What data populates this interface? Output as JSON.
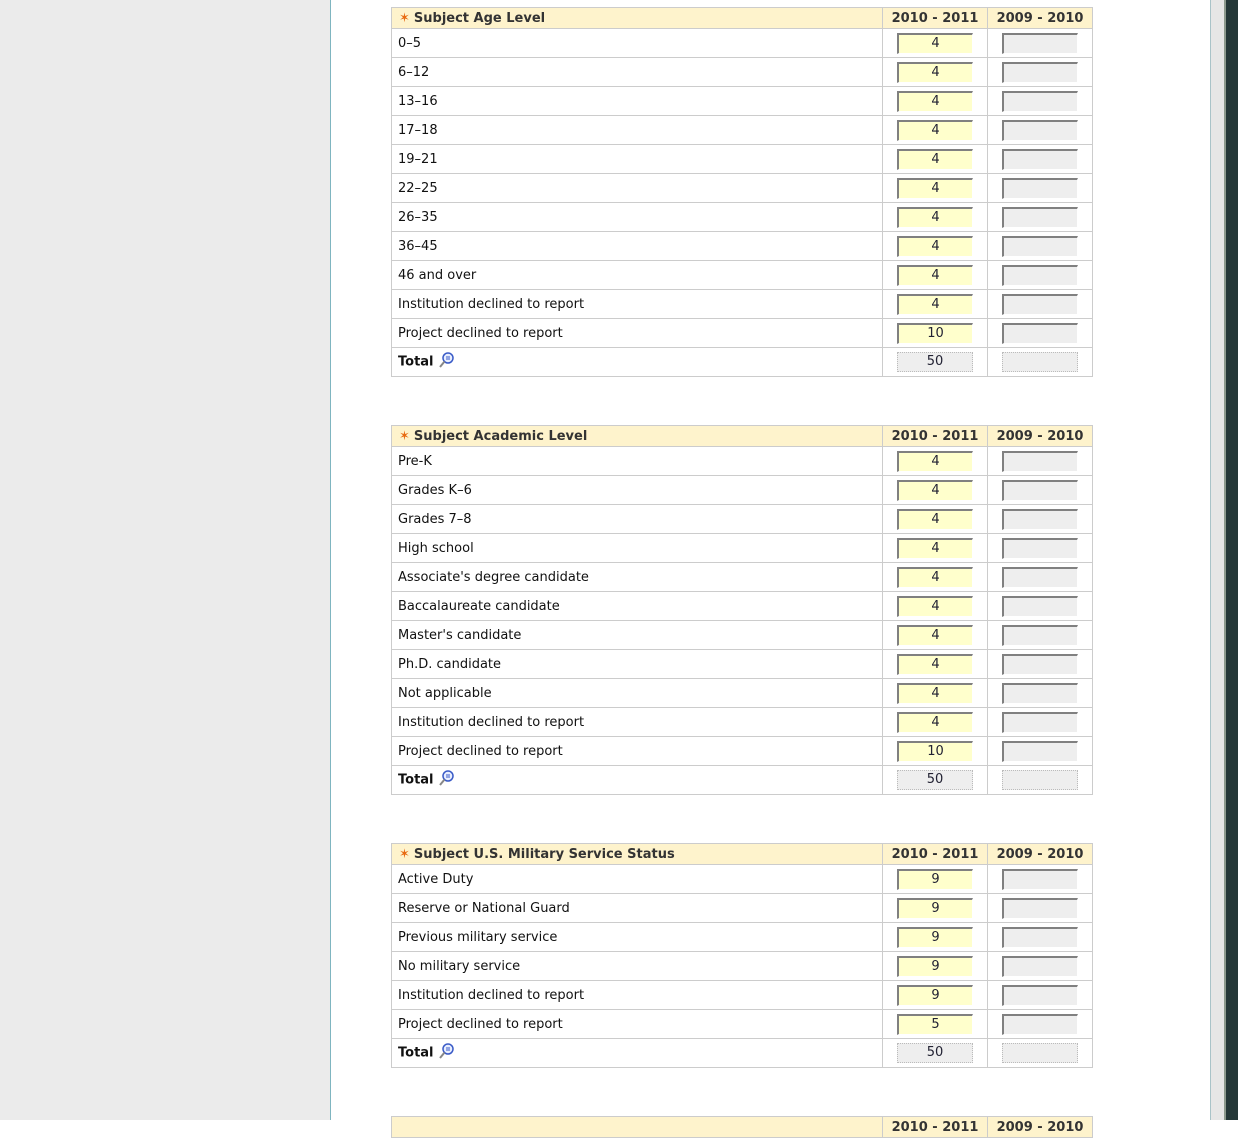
{
  "columns": [
    "2010 - 2011",
    "2009 - 2010"
  ],
  "total_label": "Total",
  "sections": [
    {
      "title": "Subject Age Level",
      "rows": [
        {
          "label": "0–5",
          "v1": "4",
          "v2": ""
        },
        {
          "label": "6–12",
          "v1": "4",
          "v2": ""
        },
        {
          "label": "13–16",
          "v1": "4",
          "v2": ""
        },
        {
          "label": "17–18",
          "v1": "4",
          "v2": ""
        },
        {
          "label": "19–21",
          "v1": "4",
          "v2": ""
        },
        {
          "label": "22–25",
          "v1": "4",
          "v2": ""
        },
        {
          "label": "26–35",
          "v1": "4",
          "v2": ""
        },
        {
          "label": "36–45",
          "v1": "4",
          "v2": ""
        },
        {
          "label": "46 and over",
          "v1": "4",
          "v2": ""
        },
        {
          "label": "Institution declined to report",
          "v1": "4",
          "v2": ""
        },
        {
          "label": "Project declined to report",
          "v1": "10",
          "v2": ""
        }
      ],
      "total1": "50",
      "total2": ""
    },
    {
      "title": "Subject Academic Level",
      "rows": [
        {
          "label": "Pre-K",
          "v1": "4",
          "v2": ""
        },
        {
          "label": "Grades K–6",
          "v1": "4",
          "v2": ""
        },
        {
          "label": "Grades 7–8",
          "v1": "4",
          "v2": ""
        },
        {
          "label": "High school",
          "v1": "4",
          "v2": ""
        },
        {
          "label": "Associate's degree candidate",
          "v1": "4",
          "v2": ""
        },
        {
          "label": "Baccalaureate candidate",
          "v1": "4",
          "v2": ""
        },
        {
          "label": "Master's candidate",
          "v1": "4",
          "v2": ""
        },
        {
          "label": "Ph.D. candidate",
          "v1": "4",
          "v2": ""
        },
        {
          "label": "Not applicable",
          "v1": "4",
          "v2": ""
        },
        {
          "label": "Institution declined to report",
          "v1": "4",
          "v2": ""
        },
        {
          "label": "Project declined to report",
          "v1": "10",
          "v2": ""
        }
      ],
      "total1": "50",
      "total2": ""
    },
    {
      "title": "Subject U.S. Military Service Status",
      "rows": [
        {
          "label": "Active Duty",
          "v1": "9",
          "v2": ""
        },
        {
          "label": "Reserve or National Guard",
          "v1": "9",
          "v2": ""
        },
        {
          "label": "Previous military service",
          "v1": "9",
          "v2": ""
        },
        {
          "label": "No military service",
          "v1": "9",
          "v2": ""
        },
        {
          "label": "Institution declined to report",
          "v1": "9",
          "v2": ""
        },
        {
          "label": "Project declined to report",
          "v1": "5",
          "v2": ""
        }
      ],
      "total1": "50",
      "total2": ""
    },
    {
      "title": "",
      "rows": [],
      "total1": "",
      "total2": ""
    }
  ],
  "colors": {
    "header_bg": "#fef3cc",
    "input_bg": "#ffffcc",
    "required_star": "#e86a12"
  }
}
